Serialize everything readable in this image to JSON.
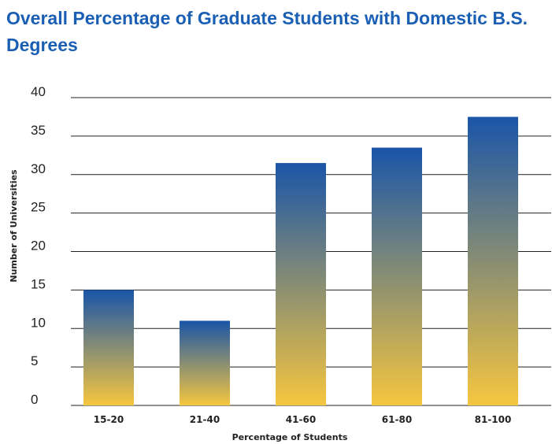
{
  "chart_data": {
    "type": "bar",
    "title": "Overall Percentage of Graduate Students with Domestic B.S. Degrees",
    "xlabel": "Percentage of Students",
    "ylabel": "Number of Universities",
    "categories": [
      "15-20",
      "21-40",
      "41-60",
      "61-80",
      "81-100"
    ],
    "values": [
      15,
      11,
      31.5,
      33.5,
      37.5
    ],
    "ylim": [
      0,
      40
    ],
    "yticks": [
      "0",
      "5",
      "10",
      "15",
      "20",
      "25",
      "30",
      "35",
      "40"
    ],
    "grid": true,
    "colors": {
      "bar_top": "#1a55a8",
      "bar_bottom": "#f6c63f",
      "title": "#1a5fb4"
    }
  }
}
